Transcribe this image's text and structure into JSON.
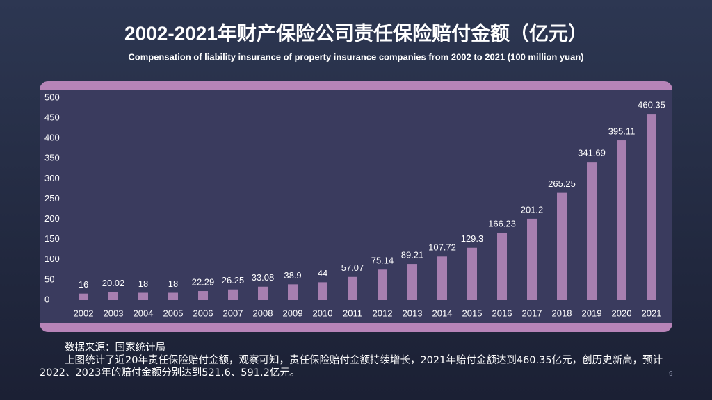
{
  "chart_data": {
    "type": "bar",
    "title": "2002-2021年财产保险公司责任保险赔付金额（亿元）",
    "subtitle": "Compensation of liability insurance of property insurance companies from 2002 to 2021 (100 million yuan)",
    "categories": [
      "2002",
      "2003",
      "2004",
      "2005",
      "2006",
      "2007",
      "2008",
      "2009",
      "2010",
      "2011",
      "2012",
      "2013",
      "2014",
      "2015",
      "2016",
      "2017",
      "2018",
      "2019",
      "2020",
      "2021"
    ],
    "values": [
      16,
      20.02,
      18,
      18,
      22.29,
      26.25,
      33.08,
      38.9,
      44,
      57.07,
      75.14,
      89.21,
      107.72,
      129.3,
      166.23,
      201.2,
      265.25,
      341.69,
      395.11,
      460.35
    ],
    "color": "#a77fb0",
    "ylim": [
      0,
      500
    ],
    "yticks": [
      0,
      50,
      100,
      150,
      200,
      250,
      300,
      350,
      400,
      450,
      500
    ]
  },
  "source": "数据来源：国家统计局",
  "description": "上图统计了近20年责任保险赔付金额，观察可知，责任保险赔付金额持续增长，2021年赔付金额达到460.35亿元，创历史新高，预计2022、2023年的赔付金额分别达到521.6、591.2亿元。",
  "page_number": "9"
}
